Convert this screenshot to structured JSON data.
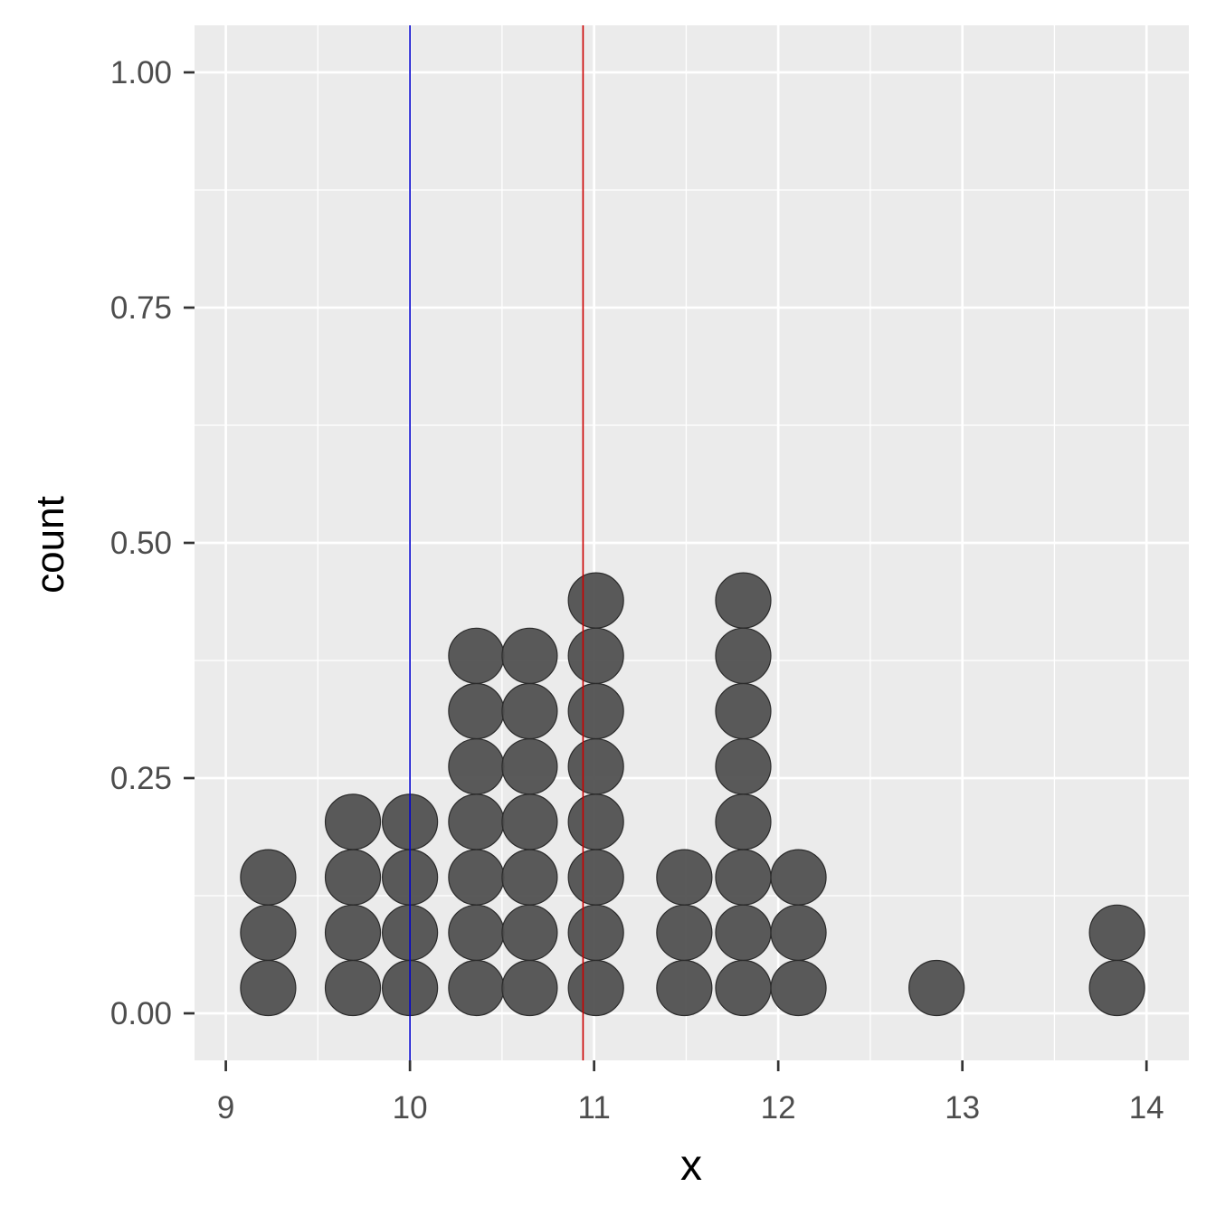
{
  "chart_data": {
    "type": "dotplot",
    "xlabel": "x",
    "ylabel": "count",
    "xlim": [
      8.83,
      14.23
    ],
    "ylim": [
      -0.05,
      1.05
    ],
    "x_ticks": [
      9,
      10,
      11,
      12,
      13,
      14
    ],
    "x_tick_labels": [
      "9",
      "10",
      "11",
      "12",
      "13",
      "14"
    ],
    "y_ticks": [
      0,
      0.25,
      0.5,
      0.75,
      1
    ],
    "y_tick_labels": [
      "0.00",
      "0.25",
      "0.50",
      "0.75",
      "1.00"
    ],
    "grid": true,
    "dot_color": "#4d4d4d",
    "panel_background": "#ebebeb",
    "stacks": [
      {
        "x": 9.23,
        "count": 3
      },
      {
        "x": 9.69,
        "count": 4
      },
      {
        "x": 10.0,
        "count": 4
      },
      {
        "x": 10.36,
        "count": 7
      },
      {
        "x": 10.65,
        "count": 7
      },
      {
        "x": 11.01,
        "count": 8
      },
      {
        "x": 11.49,
        "count": 3
      },
      {
        "x": 11.81,
        "count": 8
      },
      {
        "x": 12.11,
        "count": 3
      },
      {
        "x": 12.86,
        "count": 1
      },
      {
        "x": 13.84,
        "count": 2
      }
    ],
    "vlines": [
      {
        "x": 10.0,
        "color": "#0000cc"
      },
      {
        "x": 10.94,
        "color": "#cc0000"
      }
    ]
  }
}
